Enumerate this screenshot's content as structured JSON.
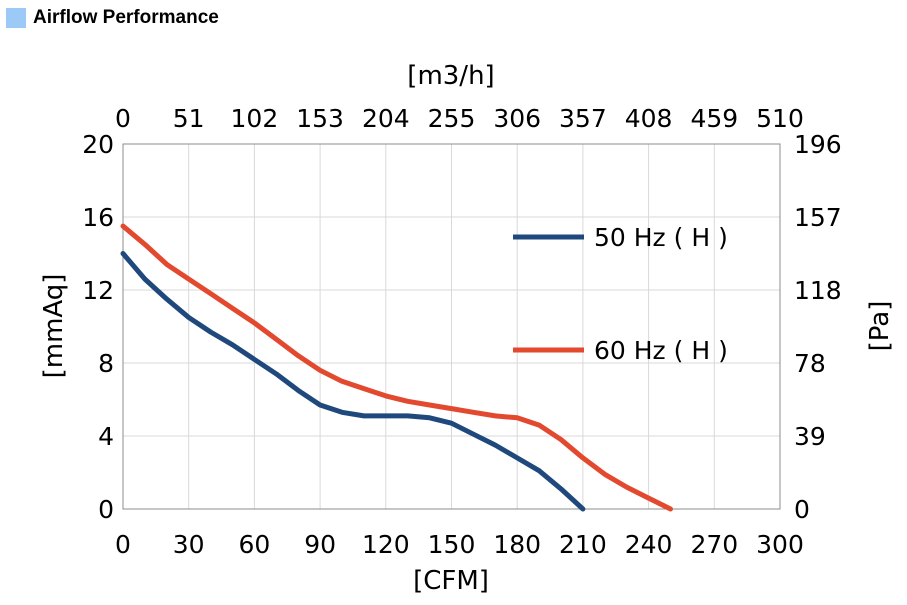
{
  "header": {
    "title": "Airflow Performance",
    "accent": "#9cc9f5"
  },
  "chart_data": {
    "type": "line",
    "xlabel": "[CFM]",
    "x2label": "[m3/h]",
    "ylabel": "[mmAq]",
    "y2label": "[Pa]",
    "xlim": [
      0,
      300
    ],
    "ylim": [
      0,
      20
    ],
    "x_ticks": [
      0,
      30,
      60,
      90,
      120,
      150,
      180,
      210,
      240,
      270,
      300
    ],
    "x2_ticks": [
      "0",
      "51",
      "102",
      "153",
      "204",
      "255",
      "306",
      "357",
      "408",
      "459",
      "510"
    ],
    "y_ticks": [
      0,
      4,
      8,
      12,
      16,
      20
    ],
    "y2_ticks": [
      "0",
      "39",
      "78",
      "118",
      "157",
      "196"
    ],
    "grid": true,
    "legend_position": "right",
    "series": [
      {
        "name": "50 Hz ( H )",
        "color": "#1f497d",
        "points": [
          [
            0,
            14
          ],
          [
            10,
            12.6
          ],
          [
            20,
            11.5
          ],
          [
            30,
            10.5
          ],
          [
            40,
            9.7
          ],
          [
            50,
            9.0
          ],
          [
            60,
            8.2
          ],
          [
            70,
            7.4
          ],
          [
            80,
            6.5
          ],
          [
            90,
            5.7
          ],
          [
            100,
            5.3
          ],
          [
            110,
            5.1
          ],
          [
            120,
            5.1
          ],
          [
            130,
            5.1
          ],
          [
            140,
            5.0
          ],
          [
            150,
            4.7
          ],
          [
            160,
            4.1
          ],
          [
            170,
            3.5
          ],
          [
            180,
            2.8
          ],
          [
            190,
            2.1
          ],
          [
            200,
            1.1
          ],
          [
            210,
            0
          ]
        ]
      },
      {
        "name": "60 Hz ( H )",
        "color": "#e2492e",
        "points": [
          [
            0,
            15.5
          ],
          [
            10,
            14.5
          ],
          [
            20,
            13.4
          ],
          [
            30,
            12.6
          ],
          [
            40,
            11.8
          ],
          [
            50,
            11.0
          ],
          [
            60,
            10.2
          ],
          [
            70,
            9.3
          ],
          [
            80,
            8.4
          ],
          [
            90,
            7.6
          ],
          [
            100,
            7.0
          ],
          [
            110,
            6.6
          ],
          [
            120,
            6.2
          ],
          [
            130,
            5.9
          ],
          [
            140,
            5.7
          ],
          [
            150,
            5.5
          ],
          [
            160,
            5.3
          ],
          [
            170,
            5.1
          ],
          [
            180,
            5.0
          ],
          [
            190,
            4.6
          ],
          [
            200,
            3.8
          ],
          [
            210,
            2.8
          ],
          [
            220,
            1.9
          ],
          [
            230,
            1.2
          ],
          [
            240,
            0.6
          ],
          [
            250,
            0
          ]
        ]
      }
    ]
  }
}
